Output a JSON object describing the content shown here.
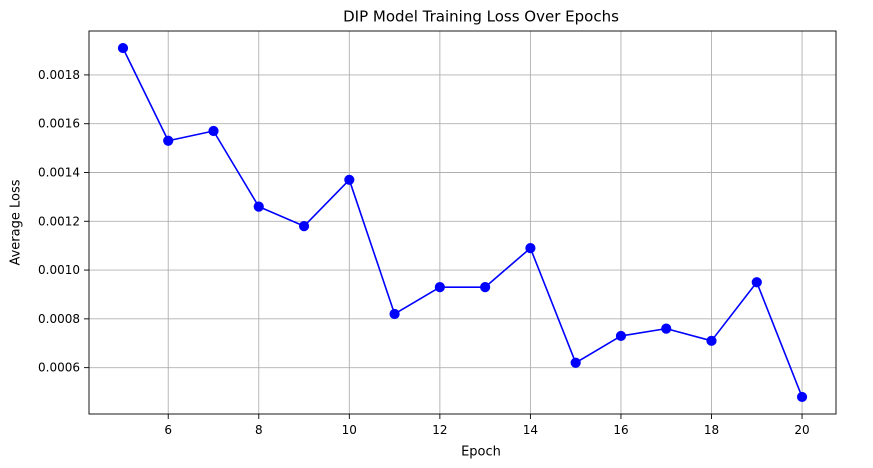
{
  "chart_data": {
    "type": "line",
    "title": "DIP Model Training Loss Over Epochs",
    "xlabel": "Epoch",
    "ylabel": "Average Loss",
    "x": [
      5,
      6,
      7,
      8,
      9,
      10,
      11,
      12,
      13,
      14,
      15,
      16,
      17,
      18,
      19,
      20
    ],
    "series": [
      {
        "values": [
          0.00191,
          0.00153,
          0.00157,
          0.00126,
          0.00118,
          0.00137,
          0.00082,
          0.00093,
          0.00093,
          0.00109,
          0.00062,
          0.00073,
          0.00076,
          0.00071,
          0.00095,
          0.00048
        ],
        "color": "#0000ff",
        "marker": "circle"
      }
    ],
    "xlim": [
      4.25,
      20.75
    ],
    "ylim": [
      0.00041,
      0.00198
    ],
    "x_ticks": [
      6,
      8,
      10,
      12,
      14,
      16,
      18,
      20
    ],
    "x_tick_labels": [
      "6",
      "8",
      "10",
      "12",
      "14",
      "16",
      "18",
      "20"
    ],
    "y_ticks": [
      0.0006,
      0.0008,
      0.001,
      0.0012,
      0.0014,
      0.0016,
      0.0018
    ],
    "y_tick_labels": [
      "0.0006",
      "0.0008",
      "0.0010",
      "0.0012",
      "0.0014",
      "0.0016",
      "0.0018"
    ],
    "grid": true,
    "grid_color": "#b0b0b0",
    "axes_color": "#000000"
  }
}
